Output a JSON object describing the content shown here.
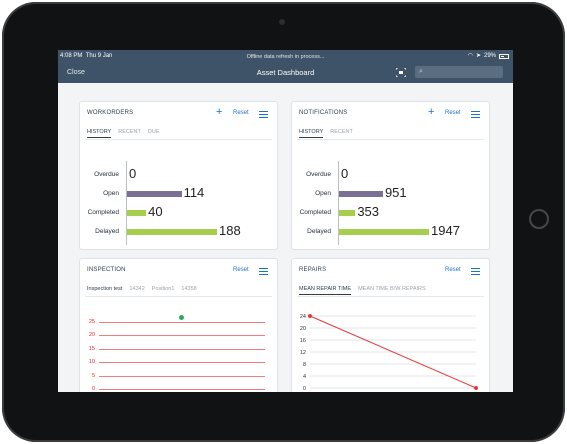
{
  "status_bar": {
    "time": "4:08 PM",
    "date": "Thu 9 Jan",
    "message": "Offline data refresh in process...",
    "battery": "29%"
  },
  "nav": {
    "close_label": "Close",
    "title": "Asset Dashboard"
  },
  "workorders": {
    "title": "WORKORDERS",
    "reset_label": "Reset",
    "tabs": [
      "HISTORY",
      "RECENT",
      "DUE"
    ],
    "rows": [
      {
        "label": "Overdue",
        "value": "0"
      },
      {
        "label": "Open",
        "value": "114"
      },
      {
        "label": "Completed",
        "value": "40"
      },
      {
        "label": "Delayed",
        "value": "188"
      }
    ]
  },
  "notifications": {
    "title": "NOTIFICATIONS",
    "reset_label": "Reset",
    "tabs": [
      "HISTORY",
      "RECENT"
    ],
    "rows": [
      {
        "label": "Overdue",
        "value": "0"
      },
      {
        "label": "Open",
        "value": "951"
      },
      {
        "label": "Completed",
        "value": "353"
      },
      {
        "label": "Delayed",
        "value": "1947"
      }
    ]
  },
  "inspection": {
    "title": "INSPECTION",
    "reset_label": "Reset",
    "tabs": [
      "Inspection test",
      "14342",
      "Position1",
      "14358"
    ],
    "yticks": [
      "25",
      "20",
      "15",
      "10",
      "5",
      "0"
    ]
  },
  "repairs": {
    "title": "REPAIRS",
    "reset_label": "Reset",
    "tabs": [
      "MEAN REPAIR TIME",
      "MEAN TIME B/W REPAIRS"
    ],
    "yticks": [
      "24",
      "20",
      "16",
      "12",
      "8",
      "4",
      "0"
    ]
  },
  "chart_data": [
    {
      "type": "bar",
      "title": "WORKORDERS",
      "categories": [
        "Overdue",
        "Open",
        "Completed",
        "Delayed"
      ],
      "values": [
        0,
        114,
        40,
        188
      ],
      "colors": [
        "#7b6f96",
        "#7b6f96",
        "#a5cf4c",
        "#a5cf4c"
      ]
    },
    {
      "type": "bar",
      "title": "NOTIFICATIONS",
      "categories": [
        "Overdue",
        "Open",
        "Completed",
        "Delayed"
      ],
      "values": [
        0,
        951,
        353,
        1947
      ],
      "colors": [
        "#7b6f96",
        "#7b6f96",
        "#a5cf4c",
        "#a5cf4c"
      ]
    },
    {
      "type": "scatter",
      "title": "INSPECTION",
      "ylim": [
        0,
        25
      ],
      "yticks": [
        0,
        5,
        10,
        15,
        20,
        25
      ],
      "points": [
        {
          "y": 27
        }
      ],
      "point_color": "#2eaa57",
      "line_color": "#f08080"
    },
    {
      "type": "line",
      "title": "REPAIRS",
      "ylim": [
        0,
        24
      ],
      "yticks": [
        0,
        4,
        8,
        12,
        16,
        20,
        24
      ],
      "values": [
        24,
        0
      ],
      "line_color": "#e53b3b"
    }
  ]
}
